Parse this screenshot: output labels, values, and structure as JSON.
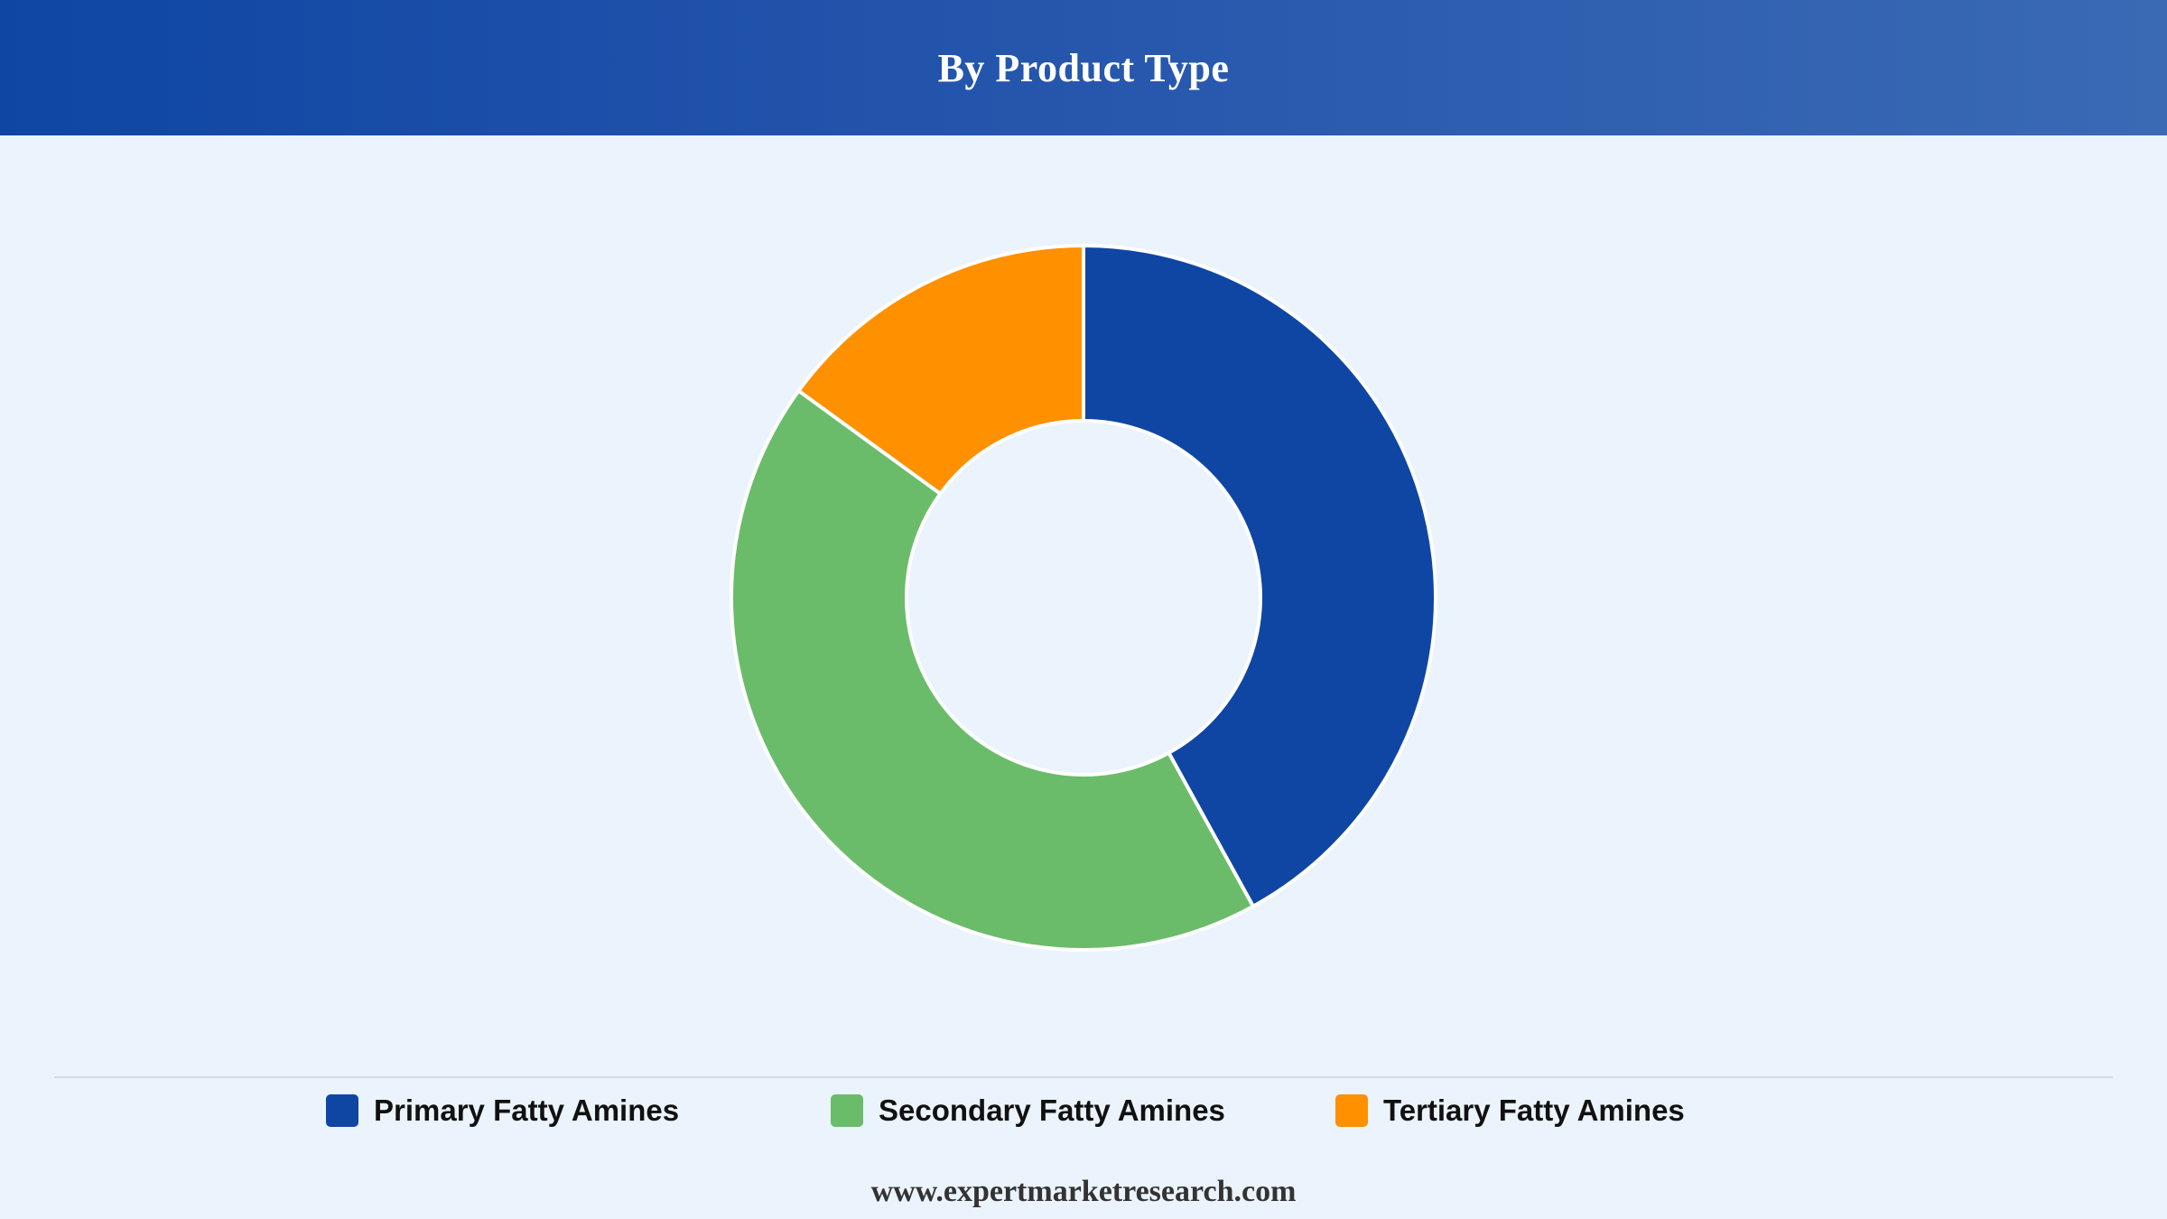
{
  "header": {
    "title": "By Product Type"
  },
  "chart_data": {
    "type": "pie",
    "variant": "donut",
    "title": "By Product Type",
    "slices": [
      {
        "label": "Primary Fatty Amines",
        "value": 42,
        "color": "#0f46a4"
      },
      {
        "label": "Secondary Fatty Amines",
        "value": 43,
        "color": "#6abc6a"
      },
      {
        "label": "Tertiary Fatty Amines",
        "value": 15,
        "color": "#ff9000"
      }
    ],
    "start": "top",
    "direction": "clockwise",
    "legend": "bottom"
  },
  "legend": {
    "items": [
      {
        "label": "Primary Fatty Amines",
        "color": "#0f46a4"
      },
      {
        "label": "Secondary Fatty Amines",
        "color": "#6abc6a"
      },
      {
        "label": "Tertiary Fatty Amines",
        "color": "#ff9000"
      }
    ]
  },
  "footer": {
    "source": "www.expertmarketresearch.com"
  },
  "colors": {
    "background": "#ebf3fc",
    "header": "#0f46a4"
  }
}
